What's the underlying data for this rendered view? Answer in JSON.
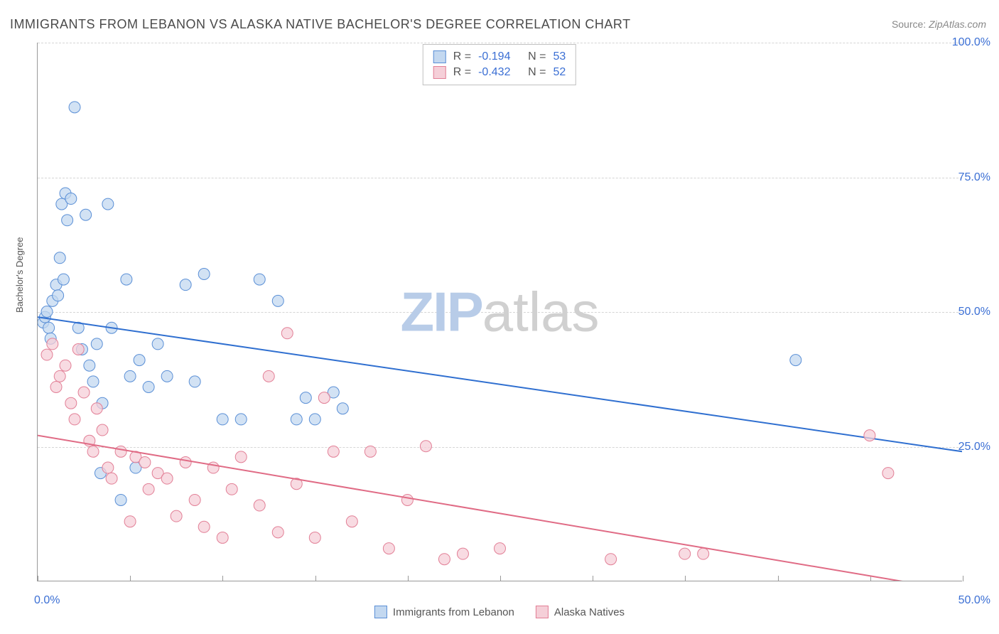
{
  "title": "IMMIGRANTS FROM LEBANON VS ALASKA NATIVE BACHELOR'S DEGREE CORRELATION CHART",
  "source_label": "Source:",
  "source_value": "ZipAtlas.com",
  "watermark_a": "ZIP",
  "watermark_b": "atlas",
  "chart": {
    "type": "scatter",
    "ylabel": "Bachelor's Degree",
    "xlim": [
      0,
      50
    ],
    "ylim": [
      0,
      100
    ],
    "ytick_labels": [
      "25.0%",
      "50.0%",
      "75.0%",
      "100.0%"
    ],
    "ytick_positions": [
      25,
      50,
      75,
      100
    ],
    "xtick_positions": [
      0,
      5,
      10,
      15,
      20,
      25,
      30,
      35,
      40,
      45,
      50
    ],
    "x_left_label": "0.0%",
    "x_right_label": "50.0%",
    "grid_color": "#d5d5d5",
    "axis_color": "#999999",
    "background_color": "#ffffff",
    "series": [
      {
        "name": "Immigrants from Lebanon",
        "fill": "#c3d8f0",
        "stroke": "#5a8fd6",
        "line_color": "#2f6fd0",
        "marker_radius": 8,
        "R": "-0.194",
        "N": "53",
        "trend": {
          "x1": 0,
          "y1": 49,
          "x2": 50,
          "y2": 24
        },
        "points": [
          [
            0.3,
            48
          ],
          [
            0.4,
            49
          ],
          [
            0.5,
            50
          ],
          [
            0.6,
            47
          ],
          [
            0.8,
            52
          ],
          [
            0.7,
            45
          ],
          [
            1.0,
            55
          ],
          [
            1.1,
            53
          ],
          [
            1.2,
            60
          ],
          [
            1.3,
            70
          ],
          [
            1.5,
            72
          ],
          [
            1.4,
            56
          ],
          [
            1.6,
            67
          ],
          [
            1.8,
            71
          ],
          [
            2.0,
            88
          ],
          [
            2.2,
            47
          ],
          [
            2.4,
            43
          ],
          [
            2.6,
            68
          ],
          [
            2.8,
            40
          ],
          [
            3.0,
            37
          ],
          [
            3.2,
            44
          ],
          [
            3.4,
            20
          ],
          [
            3.5,
            33
          ],
          [
            3.8,
            70
          ],
          [
            4.0,
            47
          ],
          [
            4.5,
            15
          ],
          [
            4.8,
            56
          ],
          [
            5.0,
            38
          ],
          [
            5.3,
            21
          ],
          [
            5.5,
            41
          ],
          [
            6.0,
            36
          ],
          [
            6.5,
            44
          ],
          [
            7.0,
            38
          ],
          [
            8.0,
            55
          ],
          [
            8.5,
            37
          ],
          [
            9.0,
            57
          ],
          [
            10.0,
            30
          ],
          [
            11.0,
            30
          ],
          [
            12.0,
            56
          ],
          [
            13.0,
            52
          ],
          [
            14.0,
            30
          ],
          [
            14.5,
            34
          ],
          [
            15.0,
            30
          ],
          [
            16.0,
            35
          ],
          [
            16.5,
            32
          ],
          [
            41.0,
            41
          ]
        ]
      },
      {
        "name": "Alaska Natives",
        "fill": "#f5cfd8",
        "stroke": "#e27f96",
        "line_color": "#e06b85",
        "marker_radius": 8,
        "R": "-0.432",
        "N": "52",
        "trend": {
          "x1": 0,
          "y1": 27,
          "x2": 50,
          "y2": -2
        },
        "points": [
          [
            0.5,
            42
          ],
          [
            0.8,
            44
          ],
          [
            1.0,
            36
          ],
          [
            1.2,
            38
          ],
          [
            1.5,
            40
          ],
          [
            1.8,
            33
          ],
          [
            2.0,
            30
          ],
          [
            2.2,
            43
          ],
          [
            2.5,
            35
          ],
          [
            2.8,
            26
          ],
          [
            3.0,
            24
          ],
          [
            3.2,
            32
          ],
          [
            3.5,
            28
          ],
          [
            3.8,
            21
          ],
          [
            4.0,
            19
          ],
          [
            4.5,
            24
          ],
          [
            5.0,
            11
          ],
          [
            5.3,
            23
          ],
          [
            5.8,
            22
          ],
          [
            6.0,
            17
          ],
          [
            6.5,
            20
          ],
          [
            7.0,
            19
          ],
          [
            7.5,
            12
          ],
          [
            8.0,
            22
          ],
          [
            8.5,
            15
          ],
          [
            9.0,
            10
          ],
          [
            9.5,
            21
          ],
          [
            10.0,
            8
          ],
          [
            10.5,
            17
          ],
          [
            11.0,
            23
          ],
          [
            12.0,
            14
          ],
          [
            12.5,
            38
          ],
          [
            13.0,
            9
          ],
          [
            13.5,
            46
          ],
          [
            14.0,
            18
          ],
          [
            15.0,
            8
          ],
          [
            15.5,
            34
          ],
          [
            16.0,
            24
          ],
          [
            17.0,
            11
          ],
          [
            18.0,
            24
          ],
          [
            19.0,
            6
          ],
          [
            20.0,
            15
          ],
          [
            21.0,
            25
          ],
          [
            22.0,
            4
          ],
          [
            23.0,
            5
          ],
          [
            25.0,
            6
          ],
          [
            31.0,
            4
          ],
          [
            35.0,
            5
          ],
          [
            36.0,
            5
          ],
          [
            45.0,
            27
          ],
          [
            46.0,
            20
          ]
        ]
      }
    ]
  },
  "stats_labels": {
    "R": "R =",
    "N": "N ="
  },
  "legend": [
    {
      "label": "Immigrants from Lebanon",
      "fill": "#c3d8f0",
      "stroke": "#5a8fd6"
    },
    {
      "label": "Alaska Natives",
      "fill": "#f5cfd8",
      "stroke": "#e27f96"
    }
  ]
}
